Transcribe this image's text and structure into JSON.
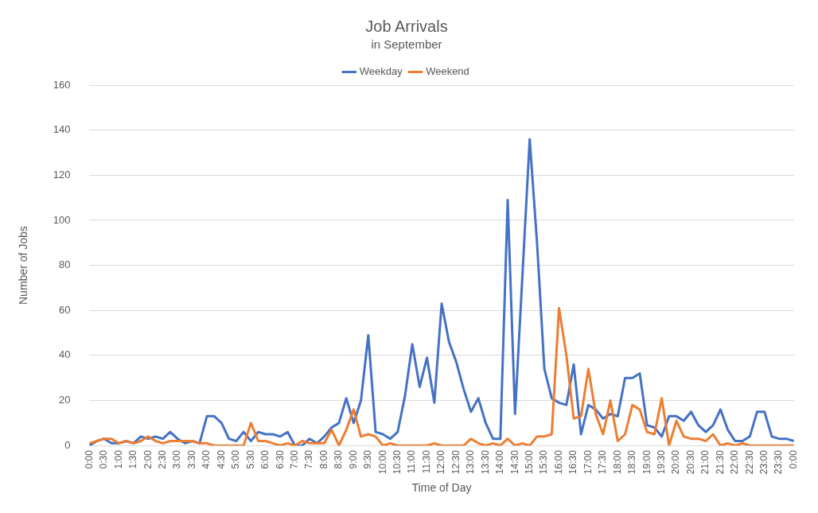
{
  "chart_data": {
    "type": "line",
    "title": "Job Arrivals",
    "subtitle": "in September",
    "xlabel": "Time of Day",
    "ylabel": "Number of Jobs",
    "categories": [
      "0:00",
      null,
      "0:30",
      null,
      "1:00",
      null,
      "1:30",
      null,
      "2:00",
      null,
      "2:30",
      null,
      "3:00",
      null,
      "3:30",
      null,
      "4:00",
      null,
      "4:30",
      null,
      "5:00",
      null,
      "5:30",
      null,
      "6:00",
      null,
      "6:30",
      null,
      "7:00",
      null,
      "7:30",
      null,
      "8:00",
      null,
      "8:30",
      null,
      "9:00",
      null,
      "9:30",
      null,
      "10:00",
      null,
      "10:30",
      null,
      "11:00",
      null,
      "11:30",
      null,
      "12:00",
      null,
      "12:30",
      null,
      "13:00",
      null,
      "13:30",
      null,
      "14:00",
      null,
      "14:30",
      null,
      "15:00",
      null,
      "15:30",
      null,
      "16:00",
      null,
      "16:30",
      null,
      "17:00",
      null,
      "17:30",
      null,
      "18:00",
      null,
      "18:30",
      null,
      "19:00",
      null,
      "19:30",
      null,
      "20:00",
      null,
      "20:30",
      null,
      "21:00",
      null,
      "21:30",
      null,
      "22:00",
      null,
      "22:30",
      null,
      "23:00",
      null,
      "23:30",
      null,
      "0:00"
    ],
    "series": [
      {
        "name": "Weekday",
        "color": "#4472c4",
        "values": [
          0,
          2,
          3,
          1,
          1,
          2,
          1,
          4,
          3,
          4,
          3,
          6,
          3,
          1,
          2,
          1,
          13,
          13,
          10,
          3,
          2,
          6,
          2,
          6,
          5,
          5,
          4,
          6,
          0,
          0,
          3,
          1,
          4,
          8,
          10,
          21,
          10,
          20,
          49,
          6,
          5,
          3,
          6,
          22,
          45,
          26,
          39,
          19,
          63,
          46,
          37,
          25,
          15,
          21,
          10,
          3,
          3,
          109,
          14,
          75,
          136,
          90,
          34,
          21,
          19,
          18,
          36,
          5,
          18,
          16,
          12,
          14,
          13,
          30,
          30,
          32,
          9,
          8,
          4,
          13,
          13,
          11,
          15,
          9,
          6,
          9,
          16,
          7,
          2,
          2,
          4,
          15,
          15,
          4,
          3,
          3,
          2
        ]
      },
      {
        "name": "Weekend",
        "color": "#ed7d31",
        "values": [
          1,
          2,
          3,
          3,
          1,
          2,
          1,
          2,
          4,
          2,
          1,
          2,
          2,
          2,
          2,
          1,
          1,
          0,
          0,
          0,
          0,
          0,
          10,
          2,
          2,
          1,
          0,
          1,
          0,
          2,
          1,
          1,
          1,
          7,
          0,
          7,
          16,
          4,
          5,
          4,
          0,
          1,
          0,
          0,
          0,
          0,
          0,
          1,
          0,
          0,
          0,
          0,
          3,
          1,
          0,
          1,
          0,
          3,
          0,
          1,
          0,
          4,
          4,
          5,
          61,
          40,
          12,
          13,
          34,
          14,
          5,
          20,
          2,
          5,
          18,
          16,
          6,
          5,
          21,
          0,
          11,
          4,
          3,
          3,
          2,
          5,
          0,
          1,
          0,
          1,
          0,
          0,
          0,
          0,
          0,
          0,
          0
        ]
      }
    ],
    "ylim": [
      0,
      160
    ],
    "yticks": [
      0,
      20,
      40,
      60,
      80,
      100,
      120,
      140,
      160
    ],
    "grid": "y",
    "legend": "top",
    "marker": "none",
    "line_style": "solid"
  }
}
